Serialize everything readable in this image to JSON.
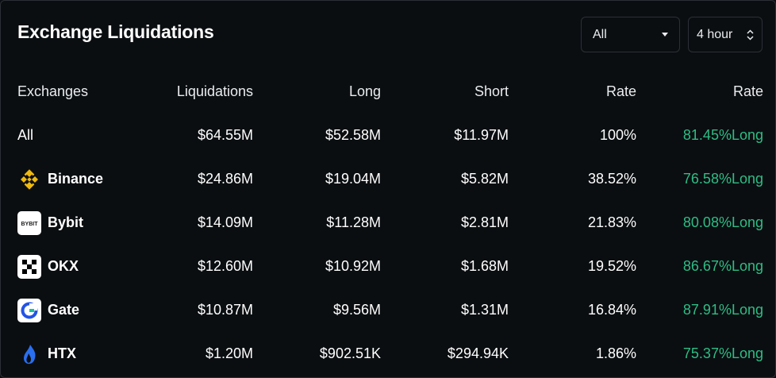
{
  "header": {
    "title": "Exchange Liquidations",
    "filter_value": "All",
    "period_value": "4 hour"
  },
  "table": {
    "columns": [
      "Exchanges",
      "Liquidations",
      "Long",
      "Short",
      "Rate",
      "Rate"
    ],
    "rows": [
      {
        "exchange": "All",
        "icon": "",
        "liquidations": "$64.55M",
        "long": "$52.58M",
        "short": "$11.97M",
        "rate": "100%",
        "long_rate": "81.45%Long"
      },
      {
        "exchange": "Binance",
        "icon": "binance-logo-icon",
        "liquidations": "$24.86M",
        "long": "$19.04M",
        "short": "$5.82M",
        "rate": "38.52%",
        "long_rate": "76.58%Long"
      },
      {
        "exchange": "Bybit",
        "icon": "bybit-logo-icon",
        "icon_text": "BYBIT",
        "liquidations": "$14.09M",
        "long": "$11.28M",
        "short": "$2.81M",
        "rate": "21.83%",
        "long_rate": "80.08%Long"
      },
      {
        "exchange": "OKX",
        "icon": "okx-logo-icon",
        "liquidations": "$12.60M",
        "long": "$10.92M",
        "short": "$1.68M",
        "rate": "19.52%",
        "long_rate": "86.67%Long"
      },
      {
        "exchange": "Gate",
        "icon": "gate-logo-icon",
        "liquidations": "$10.87M",
        "long": "$9.56M",
        "short": "$1.31M",
        "rate": "16.84%",
        "long_rate": "87.91%Long"
      },
      {
        "exchange": "HTX",
        "icon": "htx-logo-icon",
        "liquidations": "$1.20M",
        "long": "$902.51K",
        "short": "$294.94K",
        "rate": "1.86%",
        "long_rate": "75.37%Long"
      }
    ]
  },
  "colors": {
    "background": "#0b0e11",
    "border": "#2b2f36",
    "long_green": "#2ebd85",
    "binance_yellow": "#f0b90b",
    "gate_blue": "#2354e6",
    "htx_blue": "#2a6ff0"
  }
}
